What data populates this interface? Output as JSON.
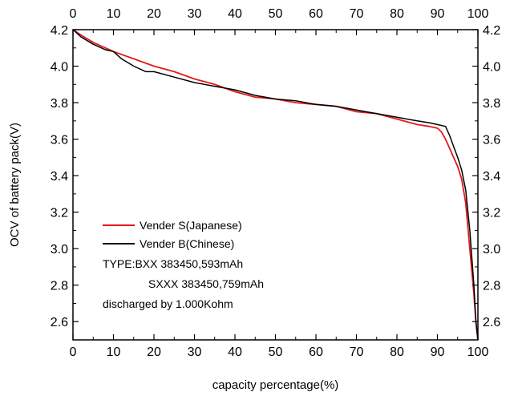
{
  "chart_data": {
    "type": "line",
    "xlabel": "capacity percentage(%)",
    "ylabel": "OCV of battery pack(V)",
    "xlim": [
      0,
      100
    ],
    "ylim": [
      2.5,
      4.2
    ],
    "x_ticks": [
      0,
      10,
      20,
      30,
      40,
      50,
      60,
      70,
      80,
      90,
      100
    ],
    "y_ticks": [
      2.6,
      2.8,
      3.0,
      3.2,
      3.4,
      3.6,
      3.8,
      4.0,
      4.2
    ],
    "y_tick_labels": [
      "2.6",
      "2.8",
      "3.0",
      "3.2",
      "3.4",
      "3.6",
      "3.8",
      "4.0",
      "4.2"
    ],
    "grid": false,
    "legend": "lower-left",
    "series": [
      {
        "name": "Vender S(Japanese)",
        "color": "#e31a1c",
        "x": [
          0,
          2,
          5,
          10,
          15,
          20,
          25,
          30,
          35,
          40,
          45,
          50,
          55,
          60,
          65,
          70,
          75,
          80,
          85,
          88,
          90,
          91,
          92,
          93,
          94,
          95,
          96,
          97,
          98,
          99,
          99.5,
          100
        ],
        "y": [
          4.2,
          4.17,
          4.13,
          4.08,
          4.04,
          4.0,
          3.97,
          3.93,
          3.9,
          3.86,
          3.83,
          3.82,
          3.8,
          3.79,
          3.78,
          3.75,
          3.74,
          3.71,
          3.68,
          3.67,
          3.66,
          3.64,
          3.6,
          3.55,
          3.5,
          3.45,
          3.38,
          3.25,
          3.0,
          2.75,
          2.6,
          2.5
        ]
      },
      {
        "name": "Vender B(Chinese)",
        "color": "#000000",
        "x": [
          0,
          2,
          5,
          8,
          10,
          12,
          15,
          18,
          20,
          25,
          30,
          35,
          40,
          45,
          50,
          55,
          60,
          65,
          70,
          75,
          80,
          85,
          88,
          90,
          92,
          93,
          94,
          95,
          96,
          97,
          98,
          99,
          99.5,
          100
        ],
        "y": [
          4.2,
          4.16,
          4.12,
          4.09,
          4.08,
          4.04,
          4.0,
          3.97,
          3.97,
          3.94,
          3.91,
          3.89,
          3.87,
          3.84,
          3.82,
          3.81,
          3.79,
          3.78,
          3.76,
          3.74,
          3.72,
          3.7,
          3.69,
          3.68,
          3.67,
          3.62,
          3.56,
          3.5,
          3.43,
          3.32,
          3.1,
          2.8,
          2.6,
          2.5
        ]
      }
    ],
    "annotations": [
      "TYPE:BXX 383450,593mAh",
      "SXXX 383450,759mAh",
      "discharged by 1.000Kohm"
    ],
    "colors": {
      "axis": "#000000",
      "background": "#ffffff"
    }
  }
}
